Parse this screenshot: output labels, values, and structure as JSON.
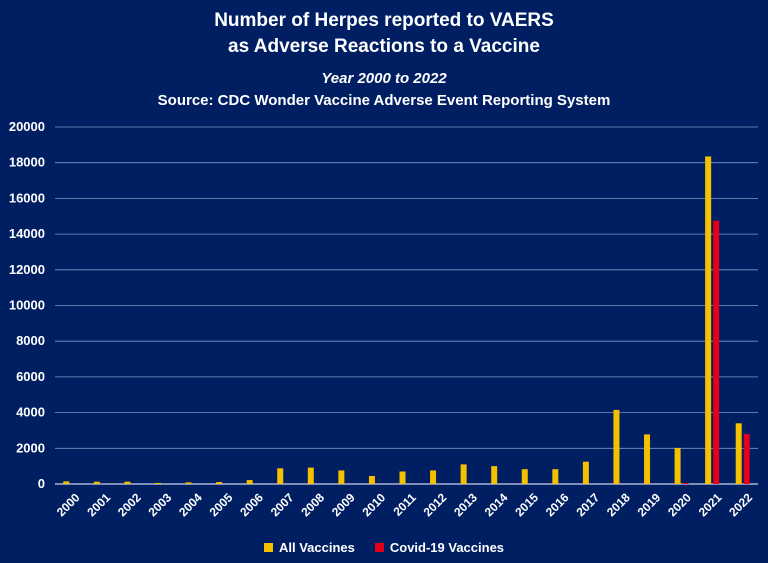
{
  "chart_data": {
    "type": "bar",
    "title_line1": "Number of Herpes reported to VAERS",
    "title_line2": "as Adverse Reactions to a Vaccine",
    "subtitle": "Year 2000 to 2022",
    "source": "Source: CDC Wonder Vaccine Adverse Event Reporting System",
    "xlabel": "",
    "ylabel": "",
    "ylim": [
      0,
      20000
    ],
    "yticks": [
      0,
      2000,
      4000,
      6000,
      8000,
      10000,
      12000,
      14000,
      16000,
      18000,
      20000
    ],
    "grid": true,
    "legend_placement": "bottom-center",
    "categories": [
      "2000",
      "2001",
      "2002",
      "2003",
      "2004",
      "2005",
      "2006",
      "2007",
      "2008",
      "2009",
      "2010",
      "2011",
      "2012",
      "2013",
      "2014",
      "2015",
      "2016",
      "2017",
      "2018",
      "2019",
      "2020",
      "2021",
      "2022"
    ],
    "series": [
      {
        "name": "All Vaccines",
        "color": "#f5c000",
        "values": [
          150,
          130,
          130,
          60,
          90,
          110,
          220,
          880,
          920,
          760,
          450,
          700,
          760,
          1100,
          1000,
          830,
          830,
          1250,
          4150,
          2780,
          2020,
          18350,
          3400
        ]
      },
      {
        "name": "Covid-19 Vaccines",
        "color": "#e4001b",
        "values": [
          0,
          0,
          0,
          0,
          0,
          0,
          0,
          0,
          0,
          0,
          0,
          0,
          0,
          0,
          0,
          0,
          0,
          0,
          0,
          0,
          60,
          14750,
          2800
        ]
      }
    ]
  }
}
